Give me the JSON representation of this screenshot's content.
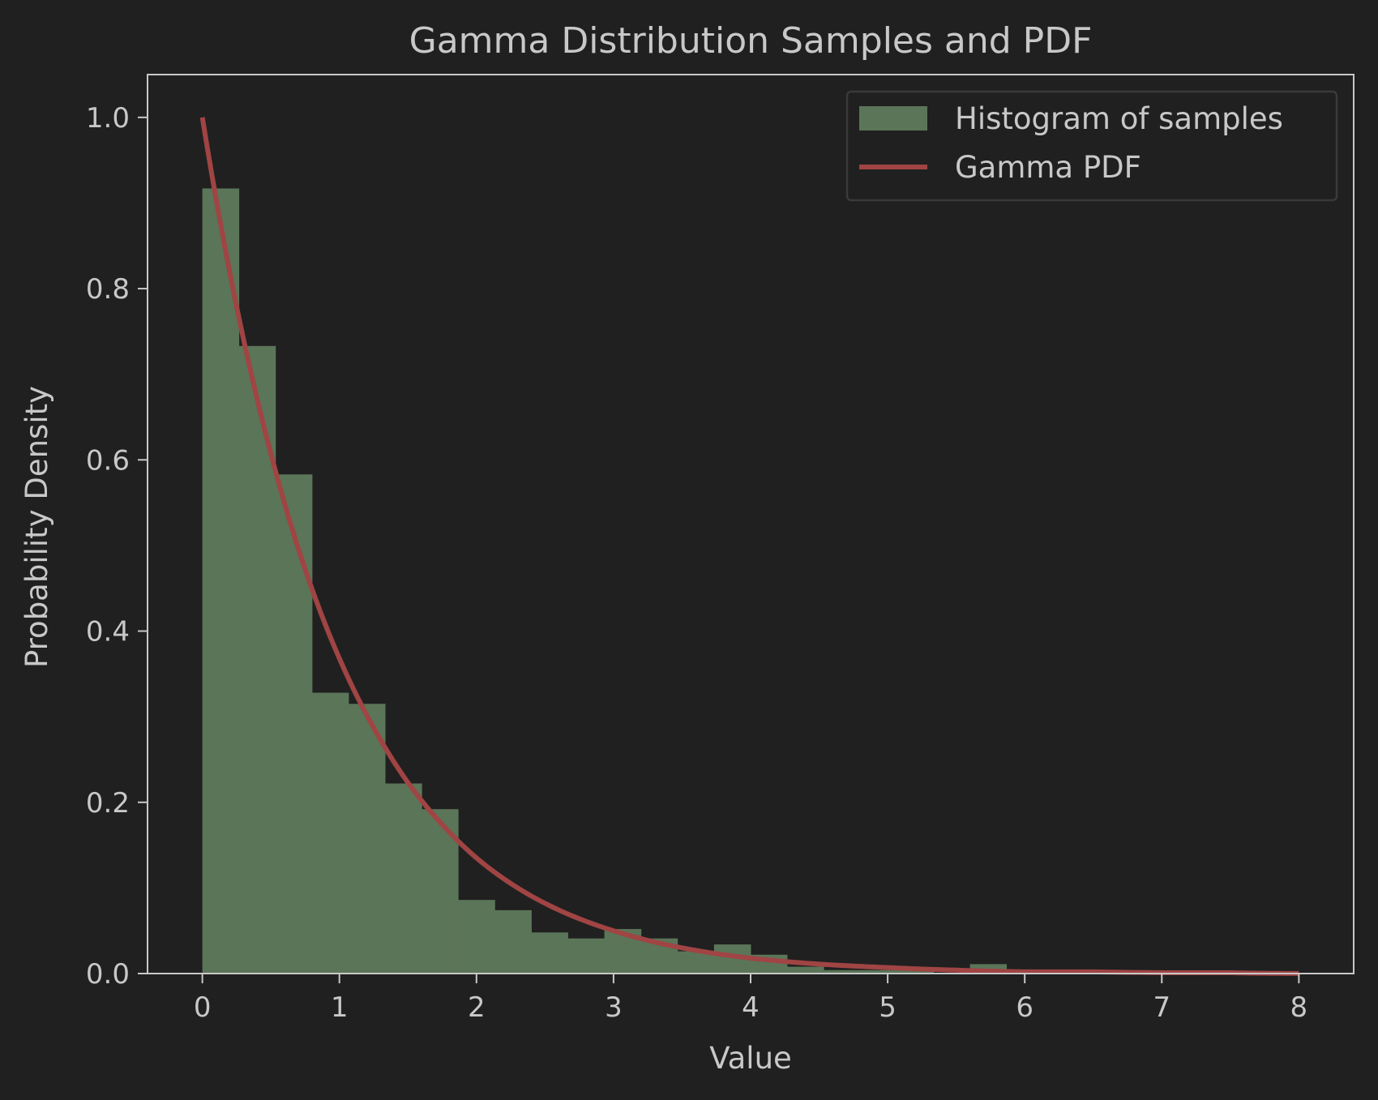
{
  "chart_data": {
    "type": "bar",
    "title": "Gamma Distribution Samples and PDF",
    "xlabel": "Value",
    "ylabel": "Probability Density",
    "xlim": [
      -0.4,
      8.4
    ],
    "ylim": [
      0.0,
      1.05
    ],
    "x_ticks": [
      0,
      1,
      2,
      3,
      4,
      5,
      6,
      7,
      8
    ],
    "x_tick_labels": [
      "0",
      "1",
      "2",
      "3",
      "4",
      "5",
      "6",
      "7",
      "8"
    ],
    "y_ticks": [
      0.0,
      0.2,
      0.4,
      0.6,
      0.8,
      1.0
    ],
    "y_tick_labels": [
      "0.0",
      "0.2",
      "0.4",
      "0.6",
      "0.8",
      "1.0"
    ],
    "grid": false,
    "legend_position": "top-right",
    "series": [
      {
        "name": "Histogram of samples",
        "kind": "histogram",
        "color": "#5b7558",
        "bin_edges": [
          0.0,
          0.266,
          0.533,
          0.8,
          1.066,
          1.333,
          1.6,
          1.866,
          2.133,
          2.4,
          2.666,
          2.933,
          3.2,
          3.466,
          3.733,
          4.0,
          4.266,
          4.533,
          4.8,
          5.066,
          5.333,
          5.6,
          5.866
        ],
        "values": [
          0.917,
          0.733,
          0.583,
          0.328,
          0.315,
          0.222,
          0.192,
          0.086,
          0.074,
          0.048,
          0.041,
          0.052,
          0.041,
          0.026,
          0.034,
          0.022,
          0.008,
          0.004,
          0.004,
          0.004,
          0.0,
          0.011
        ]
      },
      {
        "name": "Gamma PDF",
        "kind": "line",
        "color": "#a04444",
        "x": [
          0.0,
          0.25,
          0.5,
          0.75,
          1.0,
          1.25,
          1.5,
          1.75,
          2.0,
          2.5,
          3.0,
          3.5,
          4.0,
          4.5,
          5.0,
          5.5,
          6.0,
          6.5,
          7.0,
          7.5,
          8.0
        ],
        "y": [
          1.0,
          0.779,
          0.607,
          0.472,
          0.368,
          0.287,
          0.223,
          0.174,
          0.135,
          0.082,
          0.05,
          0.03,
          0.018,
          0.011,
          0.007,
          0.004,
          0.002,
          0.002,
          0.001,
          0.001,
          0.0
        ]
      }
    ]
  },
  "colors": {
    "background": "#202020",
    "axes_frame": "#c8c8c8",
    "text": "#c8c8c8",
    "legend_border": "#3a3a3a"
  }
}
